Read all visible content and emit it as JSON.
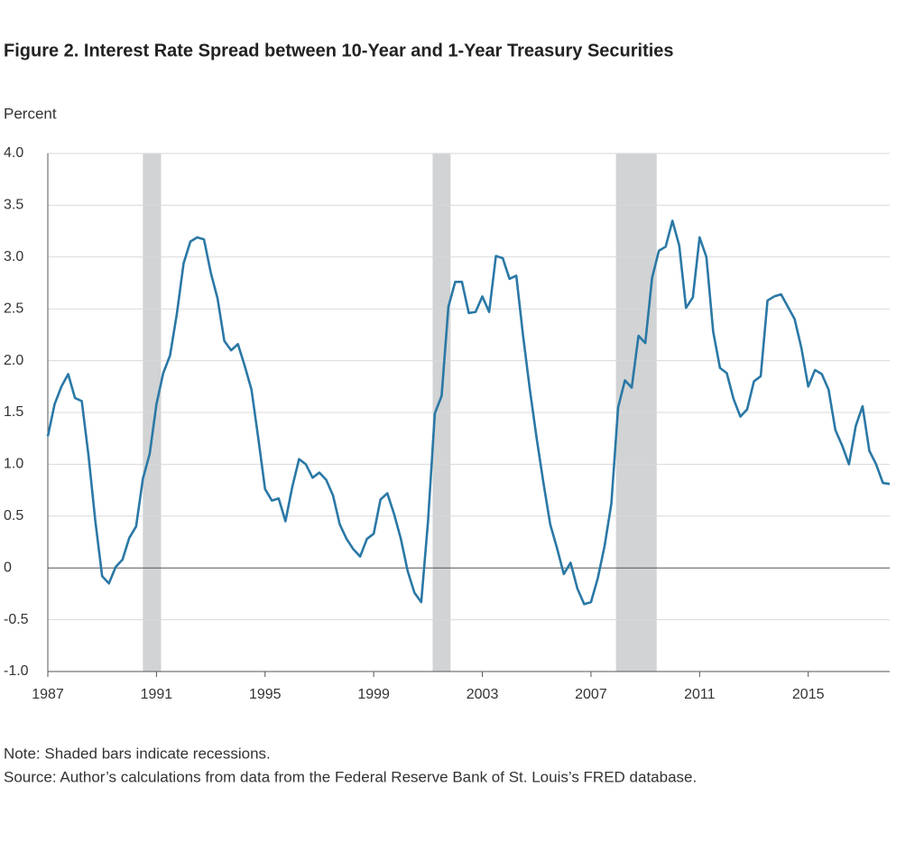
{
  "chart_data": {
    "type": "line",
    "title": "Figure 2. Interest Rate Spread between 10-Year and 1-Year Treasury Securities",
    "y_axis_label": "Percent",
    "notes": [
      "Note: Shaded bars indicate recessions.",
      "Source: Author’s calculations from data from the Federal Reserve Bank of St. Louis’s FRED database."
    ],
    "xlim": [
      1987,
      2018
    ],
    "xticks": [
      1987,
      1991,
      1995,
      1999,
      2003,
      2007,
      2011,
      2015
    ],
    "ylim": [
      -1,
      4
    ],
    "yticks": [
      {
        "value": -1,
        "label": "-1.0"
      },
      -0.5,
      0,
      0.5,
      {
        "value": 1,
        "label": "1.0"
      },
      1.5,
      {
        "value": 2,
        "label": "2.0"
      },
      2.5,
      {
        "value": 3,
        "label": "3.0"
      },
      3.5,
      {
        "value": 4,
        "label": "4.0"
      }
    ],
    "grid": true,
    "recessions": [
      [
        1990.5,
        1991.17
      ],
      [
        2001.17,
        2001.83
      ],
      [
        2007.92,
        2009.42
      ]
    ],
    "recession_color": "#d1d3d4",
    "x": [
      1987,
      1987.25,
      1987.5,
      1987.75,
      1988,
      1988.25,
      1988.5,
      1988.75,
      1989,
      1989.25,
      1989.5,
      1989.75,
      1990,
      1990.25,
      1990.5,
      1990.75,
      1991,
      1991.25,
      1991.5,
      1991.75,
      1992,
      1992.25,
      1992.5,
      1992.75,
      1993,
      1993.25,
      1993.5,
      1993.75,
      1994,
      1994.25,
      1994.5,
      1994.75,
      1995,
      1995.25,
      1995.5,
      1995.75,
      1996,
      1996.25,
      1996.5,
      1996.75,
      1997,
      1997.25,
      1997.5,
      1997.75,
      1998,
      1998.25,
      1998.5,
      1998.75,
      1999,
      1999.25,
      1999.5,
      1999.75,
      2000,
      2000.25,
      2000.5,
      2000.75,
      2001,
      2001.25,
      2001.5,
      2001.75,
      2002,
      2002.25,
      2002.5,
      2002.75,
      2003,
      2003.25,
      2003.5,
      2003.75,
      2004,
      2004.25,
      2004.5,
      2004.75,
      2005,
      2005.25,
      2005.5,
      2005.75,
      2006,
      2006.25,
      2006.5,
      2006.75,
      2007,
      2007.25,
      2007.5,
      2007.75,
      2008,
      2008.25,
      2008.5,
      2008.75,
      2009,
      2009.25,
      2009.5,
      2009.75,
      2010,
      2010.25,
      2010.5,
      2010.75,
      2011,
      2011.25,
      2011.5,
      2011.75,
      2012,
      2012.25,
      2012.5,
      2012.75,
      2013,
      2013.25,
      2013.5,
      2013.75,
      2014,
      2014.25,
      2014.5,
      2014.75,
      2015,
      2015.25,
      2015.5,
      2015.75,
      2016,
      2016.25,
      2016.5,
      2016.75,
      2017,
      2017.25,
      2017.5,
      2017.75,
      2018
    ],
    "series": [
      {
        "name": "Spread",
        "color": "#2a78a6",
        "values": [
          1.27,
          1.58,
          1.75,
          1.87,
          1.64,
          1.61,
          1.08,
          0.45,
          -0.08,
          -0.15,
          0.01,
          0.08,
          0.29,
          0.4,
          0.86,
          1.1,
          1.58,
          1.88,
          2.05,
          2.45,
          2.94,
          3.15,
          3.19,
          3.17,
          2.85,
          2.6,
          2.19,
          2.1,
          2.16,
          1.95,
          1.72,
          1.25,
          0.76,
          0.65,
          0.67,
          0.45,
          0.78,
          1.05,
          1.0,
          0.87,
          0.92,
          0.85,
          0.7,
          0.42,
          0.28,
          0.18,
          0.11,
          0.28,
          0.33,
          0.66,
          0.72,
          0.52,
          0.28,
          -0.03,
          -0.24,
          -0.33,
          0.45,
          1.49,
          1.66,
          2.52,
          2.76,
          2.76,
          2.46,
          2.47,
          2.62,
          2.47,
          3.01,
          2.99,
          2.79,
          2.82,
          2.24,
          1.72,
          1.25,
          0.82,
          0.42,
          0.19,
          -0.06,
          0.05,
          -0.2,
          -0.35,
          -0.33,
          -0.1,
          0.21,
          0.62,
          1.55,
          1.81,
          1.74,
          2.24,
          2.17,
          2.8,
          3.06,
          3.1,
          3.35,
          3.11,
          2.51,
          2.61,
          3.19,
          3.0,
          2.28,
          1.93,
          1.88,
          1.63,
          1.46,
          1.53,
          1.8,
          1.85,
          2.58,
          2.62,
          2.64,
          2.52,
          2.4,
          2.12,
          1.75,
          1.91,
          1.87,
          1.72,
          1.33,
          1.18,
          1.0,
          1.37,
          1.56,
          1.13,
          1.0,
          0.82,
          0.81
        ]
      }
    ]
  }
}
